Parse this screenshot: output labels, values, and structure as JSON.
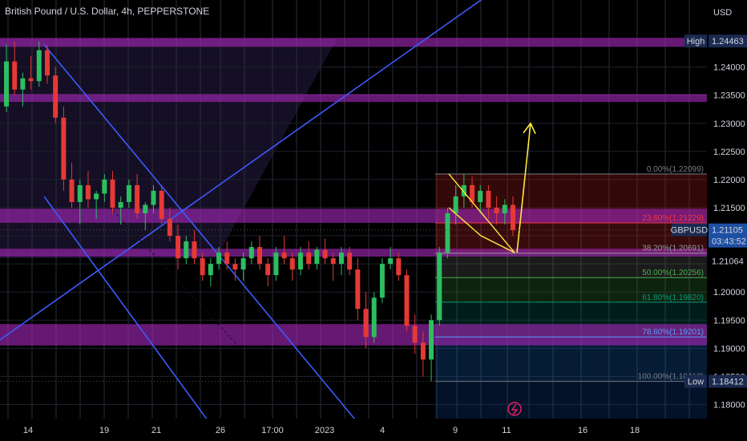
{
  "header": {
    "title": "British Pound / U.S. Dollar, 4h, PEPPERSTONE"
  },
  "chart_data": {
    "type": "candlestick",
    "symbol": "GBPUSD",
    "currency_label": "USD",
    "price_ticks": [
      "1.24000",
      "1.23500",
      "1.23000",
      "1.22500",
      "1.22000",
      "1.21500",
      "1.21000",
      "1.20500",
      "1.20000",
      "1.19500",
      "1.19000",
      "1.18500",
      "1.18000"
    ],
    "date_ticks": [
      "14",
      "19",
      "21",
      "26",
      "17:00",
      "2023",
      "4",
      "9",
      "11",
      "16",
      "18"
    ],
    "ylim": [
      1.1775,
      1.2505
    ],
    "markers": {
      "high": {
        "label": "High",
        "value": "1.24463"
      },
      "low": {
        "label": "Low",
        "value": "1.18412"
      },
      "current": {
        "label": "GBPUSD",
        "value": "1.21105",
        "countdown": "03:43:52"
      },
      "extra": {
        "value": "1.21064"
      }
    },
    "fib_levels": [
      {
        "ratio": 0.0,
        "label": "0.00%(1.22099)",
        "price": 1.22099,
        "color": "#787b86"
      },
      {
        "ratio": 0.236,
        "label": "23.60%(1.21229)",
        "price": 1.21229,
        "color": "#f23645"
      },
      {
        "ratio": 0.382,
        "label": "38.20%(1.20691)",
        "price": 1.20691,
        "color": "#9598a1"
      },
      {
        "ratio": 0.5,
        "label": "50.00%(1.20256)",
        "price": 1.20256,
        "color": "#4caf50"
      },
      {
        "ratio": 0.618,
        "label": "61.80%(1.19820)",
        "price": 1.1982,
        "color": "#089981"
      },
      {
        "ratio": 0.786,
        "label": "78.60%(1.19201)",
        "price": 1.19201,
        "color": "#5b9cf6"
      },
      {
        "ratio": 1.0,
        "label": "100.00%(1.18412)",
        "price": 1.18412,
        "color": "#787b86"
      }
    ],
    "zones": [
      {
        "top": 1.2452,
        "bottom": 1.2436
      },
      {
        "top": 1.2352,
        "bottom": 1.2338
      },
      {
        "top": 1.2148,
        "bottom": 1.2123
      },
      {
        "top": 1.2077,
        "bottom": 1.2063
      },
      {
        "top": 1.1943,
        "bottom": 1.1905
      }
    ],
    "candles": [
      [
        1.233,
        1.244,
        1.232,
        1.241
      ],
      [
        1.241,
        1.2445,
        1.235,
        1.236
      ],
      [
        1.236,
        1.239,
        1.233,
        1.238
      ],
      [
        1.238,
        1.242,
        1.236,
        1.2375
      ],
      [
        1.2375,
        1.2446,
        1.2365,
        1.243
      ],
      [
        1.243,
        1.244,
        1.237,
        1.2385
      ],
      [
        1.2385,
        1.24,
        1.23,
        1.231
      ],
      [
        1.231,
        1.233,
        1.218,
        1.22
      ],
      [
        1.22,
        1.223,
        1.215,
        1.216
      ],
      [
        1.216,
        1.22,
        1.212,
        1.219
      ],
      [
        1.219,
        1.2215,
        1.215,
        1.2165
      ],
      [
        1.2165,
        1.218,
        1.213,
        1.2175
      ],
      [
        1.2175,
        1.221,
        1.216,
        1.22
      ],
      [
        1.22,
        1.2215,
        1.214,
        1.215
      ],
      [
        1.215,
        1.217,
        1.212,
        1.216
      ],
      [
        1.216,
        1.22,
        1.215,
        1.219
      ],
      [
        1.219,
        1.221,
        1.213,
        1.214
      ],
      [
        1.214,
        1.216,
        1.211,
        1.2155
      ],
      [
        1.2155,
        1.219,
        1.214,
        1.218
      ],
      [
        1.218,
        1.219,
        1.212,
        1.213
      ],
      [
        1.213,
        1.215,
        1.209,
        1.21
      ],
      [
        1.21,
        1.212,
        1.204,
        1.206
      ],
      [
        1.206,
        1.21,
        1.205,
        1.209
      ],
      [
        1.209,
        1.211,
        1.205,
        1.206
      ],
      [
        1.206,
        1.207,
        1.202,
        1.203
      ],
      [
        1.203,
        1.206,
        1.201,
        1.205
      ],
      [
        1.205,
        1.208,
        1.204,
        1.207
      ],
      [
        1.207,
        1.209,
        1.204,
        1.205
      ],
      [
        1.205,
        1.206,
        1.202,
        1.204
      ],
      [
        1.204,
        1.207,
        1.202,
        1.206
      ],
      [
        1.206,
        1.209,
        1.205,
        1.208
      ],
      [
        1.208,
        1.21,
        1.204,
        1.205
      ],
      [
        1.205,
        1.206,
        1.201,
        1.203
      ],
      [
        1.203,
        1.208,
        1.202,
        1.207
      ],
      [
        1.207,
        1.21,
        1.205,
        1.206
      ],
      [
        1.206,
        1.207,
        1.202,
        1.204
      ],
      [
        1.204,
        1.208,
        1.203,
        1.207
      ],
      [
        1.207,
        1.209,
        1.204,
        1.205
      ],
      [
        1.205,
        1.208,
        1.204,
        1.2075
      ],
      [
        1.2075,
        1.2095,
        1.205,
        1.206
      ],
      [
        1.206,
        1.207,
        1.202,
        1.205
      ],
      [
        1.205,
        1.208,
        1.203,
        1.207
      ],
      [
        1.207,
        1.208,
        1.203,
        1.204
      ],
      [
        1.204,
        1.206,
        1.195,
        1.197
      ],
      [
        1.197,
        1.2,
        1.19,
        1.192
      ],
      [
        1.192,
        1.2,
        1.191,
        1.199
      ],
      [
        1.199,
        1.206,
        1.198,
        1.205
      ],
      [
        1.205,
        1.208,
        1.204,
        1.206
      ],
      [
        1.206,
        1.207,
        1.202,
        1.203
      ],
      [
        1.203,
        1.204,
        1.193,
        1.194
      ],
      [
        1.194,
        1.196,
        1.189,
        1.191
      ],
      [
        1.191,
        1.193,
        1.185,
        1.188
      ],
      [
        1.188,
        1.196,
        1.1841,
        1.195
      ],
      [
        1.195,
        1.208,
        1.194,
        1.207
      ],
      [
        1.207,
        1.215,
        1.206,
        1.214
      ],
      [
        1.214,
        1.219,
        1.212,
        1.217
      ],
      [
        1.217,
        1.221,
        1.215,
        1.219
      ],
      [
        1.219,
        1.2205,
        1.215,
        1.216
      ],
      [
        1.216,
        1.219,
        1.214,
        1.218
      ],
      [
        1.218,
        1.219,
        1.213,
        1.215
      ],
      [
        1.215,
        1.217,
        1.212,
        1.214
      ],
      [
        1.214,
        1.2165,
        1.212,
        1.2155
      ],
      [
        1.2155,
        1.217,
        1.21,
        1.211
      ]
    ],
    "trendlines": [
      {
        "from": [
          0,
          1.1915
        ],
        "to": [
          720,
          1.264
        ]
      },
      {
        "from": [
          55,
          1.244
        ],
        "to": [
          445,
          1.177
        ]
      },
      {
        "from": [
          55,
          1.217
        ],
        "to": [
          260,
          1.177
        ]
      }
    ],
    "projection": {
      "from": [
        645,
        1.207
      ],
      "to": [
        662,
        1.23
      ]
    },
    "wedge": [
      [
        560,
        1.221
      ],
      [
        642,
        1.207
      ],
      [
        600,
        1.21
      ],
      [
        560,
        1.215
      ]
    ],
    "colors": {
      "up": "#2dbe60",
      "down": "#e53935",
      "zone": "#9c27b0",
      "trend": "#3d5afe",
      "arrow": "#ffeb3b",
      "wedge": "#ffeb3b",
      "bg": "#000000"
    }
  }
}
